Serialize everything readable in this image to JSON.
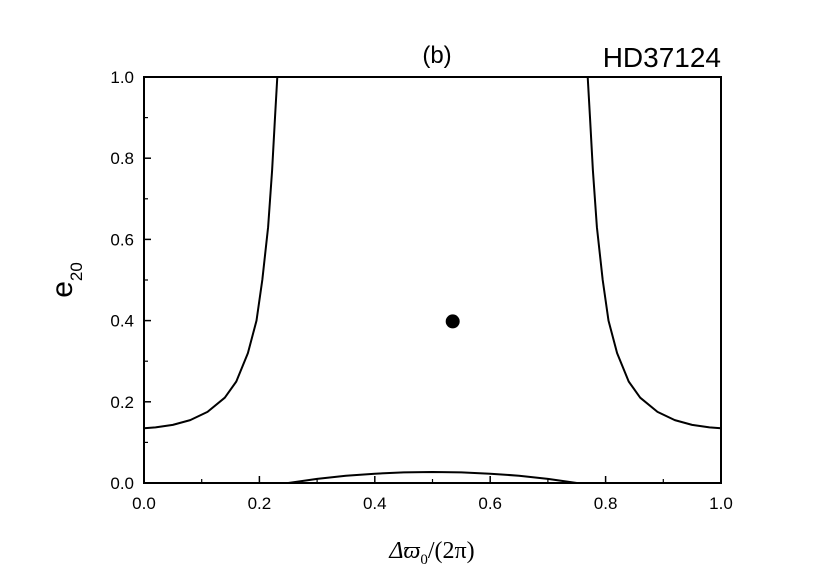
{
  "chart_data": {
    "type": "line",
    "panel_label": "(b)",
    "title": "HD37124",
    "xlabel": {
      "prefix": "Δϖ",
      "subscript": "0",
      "suffix": "/(2π)"
    },
    "ylabel": {
      "base": "e",
      "subscript": "20"
    },
    "xlim": [
      0,
      1
    ],
    "ylim": [
      0,
      1
    ],
    "x_ticks": [
      "0.0",
      "0.2",
      "0.4",
      "0.6",
      "0.8",
      "1.0"
    ],
    "y_ticks": [
      "0.0",
      "0.2",
      "0.4",
      "0.6",
      "0.8",
      "1.0"
    ],
    "grid": false,
    "series": [
      {
        "x": [
          0.0,
          0.02,
          0.05,
          0.08,
          0.11,
          0.14,
          0.16,
          0.18,
          0.195,
          0.205,
          0.215,
          0.222,
          0.227,
          0.231
        ],
        "y": [
          0.135,
          0.137,
          0.143,
          0.155,
          0.175,
          0.21,
          0.25,
          0.32,
          0.4,
          0.5,
          0.63,
          0.77,
          0.9,
          1.0
        ]
      },
      {
        "x": [
          0.769,
          0.773,
          0.778,
          0.785,
          0.795,
          0.805,
          0.82,
          0.84,
          0.86,
          0.89,
          0.92,
          0.95,
          0.98,
          1.0
        ],
        "y": [
          1.0,
          0.9,
          0.77,
          0.63,
          0.5,
          0.4,
          0.32,
          0.25,
          0.21,
          0.175,
          0.155,
          0.143,
          0.137,
          0.135
        ]
      },
      {
        "x": [
          0.25,
          0.3,
          0.35,
          0.4,
          0.45,
          0.5,
          0.55,
          0.6,
          0.65,
          0.7,
          0.75
        ],
        "y": [
          0.0,
          0.01,
          0.018,
          0.023,
          0.026,
          0.027,
          0.026,
          0.023,
          0.018,
          0.01,
          0.0
        ]
      }
    ],
    "points": [
      {
        "x": 0.535,
        "y": 0.398
      }
    ]
  }
}
